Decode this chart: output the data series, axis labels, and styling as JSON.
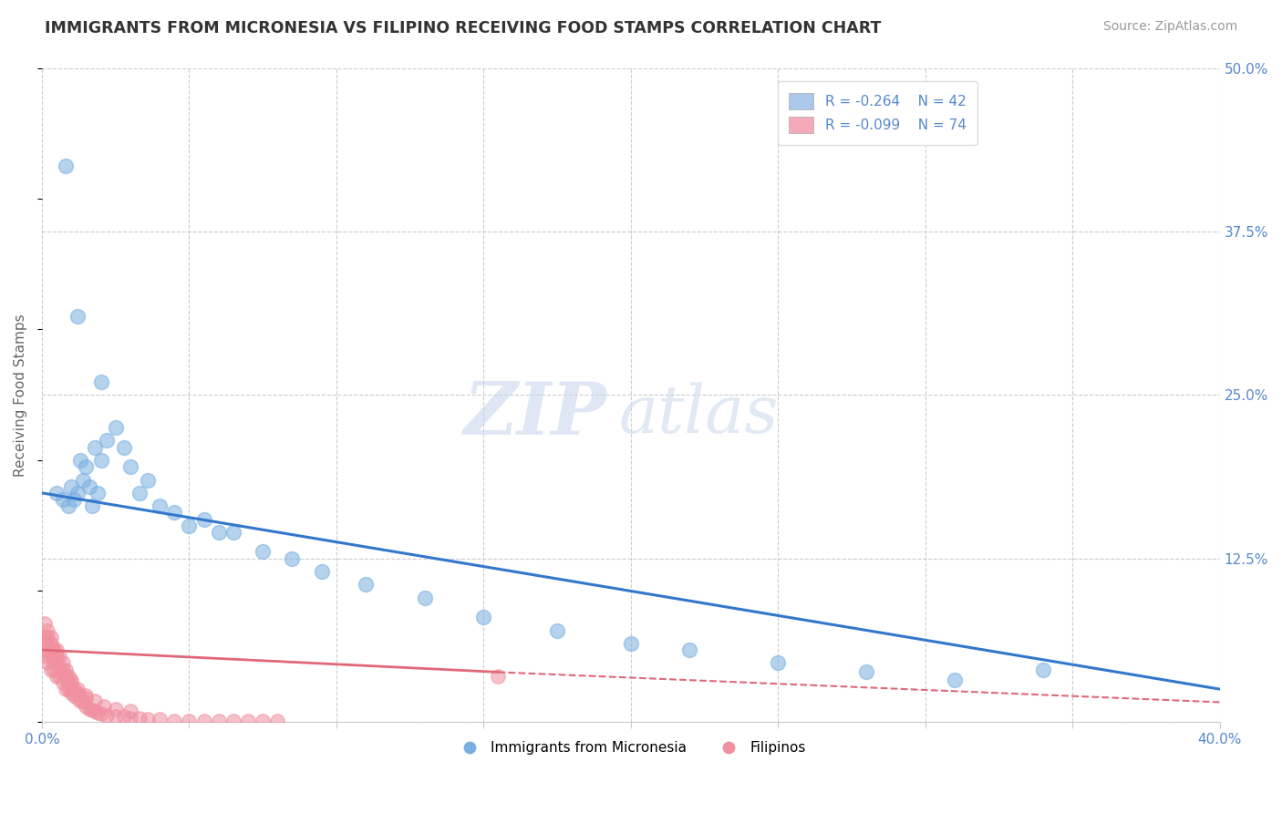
{
  "title": "IMMIGRANTS FROM MICRONESIA VS FILIPINO RECEIVING FOOD STAMPS CORRELATION CHART",
  "source_text": "Source: ZipAtlas.com",
  "ylabel": "Receiving Food Stamps",
  "watermark": "ZIPatlas",
  "xlim": [
    0.0,
    0.4
  ],
  "ylim": [
    0.0,
    0.5
  ],
  "yticks_right": [
    0.0,
    0.125,
    0.25,
    0.375,
    0.5
  ],
  "yticklabels_right": [
    "",
    "12.5%",
    "25.0%",
    "37.5%",
    "50.0%"
  ],
  "legend_blue_label": "R = -0.264    N = 42",
  "legend_pink_label": "R = -0.099    N = 74",
  "legend_blue_color": "#aac8ea",
  "legend_pink_color": "#f4aab8",
  "micronesia_color": "#7ab0e0",
  "filipino_color": "#f090a0",
  "trend_blue_color": "#3377cc",
  "trend_pink_color": "#e06878",
  "background_color": "#ffffff",
  "grid_color": "#cccccc",
  "title_color": "#333333",
  "axis_color": "#5588cc",
  "mic_trend_x0": 0.0,
  "mic_trend_y0": 0.175,
  "mic_trend_x1": 0.4,
  "mic_trend_y1": 0.025,
  "fil_trend_solid_x0": 0.0,
  "fil_trend_solid_y0": 0.055,
  "fil_trend_solid_x1": 0.155,
  "fil_trend_solid_y1": 0.038,
  "fil_trend_dash_x0": 0.155,
  "fil_trend_dash_y0": 0.038,
  "fil_trend_dash_x1": 0.4,
  "fil_trend_dash_y1": 0.015,
  "mic_x": [
    0.005,
    0.007,
    0.009,
    0.01,
    0.011,
    0.012,
    0.013,
    0.014,
    0.015,
    0.016,
    0.017,
    0.018,
    0.019,
    0.02,
    0.022,
    0.025,
    0.028,
    0.03,
    0.033,
    0.036,
    0.04,
    0.045,
    0.05,
    0.055,
    0.06,
    0.065,
    0.075,
    0.085,
    0.095,
    0.11,
    0.13,
    0.15,
    0.175,
    0.2,
    0.22,
    0.25,
    0.28,
    0.31,
    0.008,
    0.012,
    0.02,
    0.34
  ],
  "mic_y": [
    0.175,
    0.17,
    0.165,
    0.18,
    0.17,
    0.175,
    0.2,
    0.185,
    0.195,
    0.18,
    0.165,
    0.21,
    0.175,
    0.2,
    0.215,
    0.225,
    0.21,
    0.195,
    0.175,
    0.185,
    0.165,
    0.16,
    0.15,
    0.155,
    0.145,
    0.145,
    0.13,
    0.125,
    0.115,
    0.105,
    0.095,
    0.08,
    0.07,
    0.06,
    0.055,
    0.045,
    0.038,
    0.032,
    0.425,
    0.31,
    0.26,
    0.04
  ],
  "fil_x": [
    0.001,
    0.001,
    0.001,
    0.002,
    0.002,
    0.002,
    0.003,
    0.003,
    0.003,
    0.004,
    0.004,
    0.004,
    0.005,
    0.005,
    0.005,
    0.006,
    0.006,
    0.007,
    0.007,
    0.008,
    0.008,
    0.009,
    0.009,
    0.01,
    0.01,
    0.011,
    0.011,
    0.012,
    0.012,
    0.013,
    0.013,
    0.014,
    0.015,
    0.015,
    0.016,
    0.017,
    0.018,
    0.019,
    0.02,
    0.022,
    0.025,
    0.028,
    0.03,
    0.033,
    0.036,
    0.04,
    0.045,
    0.05,
    0.055,
    0.06,
    0.065,
    0.07,
    0.075,
    0.08,
    0.001,
    0.001,
    0.002,
    0.002,
    0.003,
    0.003,
    0.004,
    0.005,
    0.006,
    0.007,
    0.008,
    0.009,
    0.01,
    0.012,
    0.015,
    0.018,
    0.021,
    0.025,
    0.03,
    0.155
  ],
  "fil_y": [
    0.06,
    0.05,
    0.055,
    0.045,
    0.055,
    0.06,
    0.04,
    0.05,
    0.055,
    0.04,
    0.045,
    0.055,
    0.035,
    0.045,
    0.05,
    0.035,
    0.04,
    0.03,
    0.04,
    0.025,
    0.035,
    0.025,
    0.03,
    0.022,
    0.03,
    0.02,
    0.025,
    0.018,
    0.022,
    0.016,
    0.02,
    0.015,
    0.012,
    0.018,
    0.01,
    0.009,
    0.008,
    0.007,
    0.006,
    0.005,
    0.004,
    0.004,
    0.003,
    0.003,
    0.002,
    0.002,
    0.001,
    0.001,
    0.001,
    0.001,
    0.001,
    0.001,
    0.001,
    0.001,
    0.075,
    0.065,
    0.07,
    0.065,
    0.065,
    0.06,
    0.055,
    0.055,
    0.05,
    0.045,
    0.04,
    0.035,
    0.032,
    0.025,
    0.02,
    0.016,
    0.012,
    0.01,
    0.008,
    0.035
  ]
}
